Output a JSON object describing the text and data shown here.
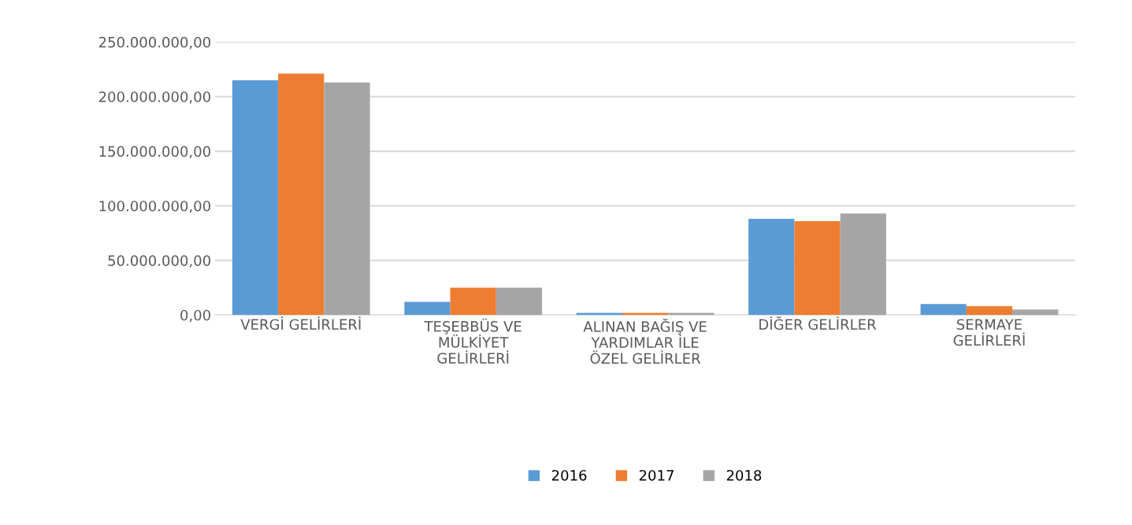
{
  "chart_data": {
    "type": "bar",
    "categories": [
      "VERGİ GELİRLERİ",
      "TEŞEBBÜS VE MÜLKİYET GELİRLERİ",
      "ALINAN BAĞIŞ VE YARDIMLAR İLE ÖZEL GELİRLER",
      "DİĞER GELİRLER",
      "SERMAYE GELİRLERİ"
    ],
    "series": [
      {
        "name": "2016",
        "color": "#5b9bd5",
        "values": [
          215000000,
          12000000,
          2000000,
          88000000,
          10000000
        ]
      },
      {
        "name": "2017",
        "color": "#ed7d31",
        "values": [
          221000000,
          25000000,
          2000000,
          86000000,
          8000000
        ]
      },
      {
        "name": "2018",
        "color": "#a5a5a5",
        "values": [
          213000000,
          25000000,
          2000000,
          93000000,
          5000000
        ]
      }
    ],
    "ylim": [
      0,
      250000000
    ],
    "yticks": [
      {
        "value": 0,
        "label": "0,00"
      },
      {
        "value": 50000000,
        "label": "50.000.000,00"
      },
      {
        "value": 100000000,
        "label": "100.000.000,00"
      },
      {
        "value": 150000000,
        "label": "150.000.000,00"
      },
      {
        "value": 200000000,
        "label": "200.000.000,00"
      },
      {
        "value": 250000000,
        "label": "250.000.000,00"
      }
    ],
    "grid": "y",
    "legend": "bottom"
  }
}
